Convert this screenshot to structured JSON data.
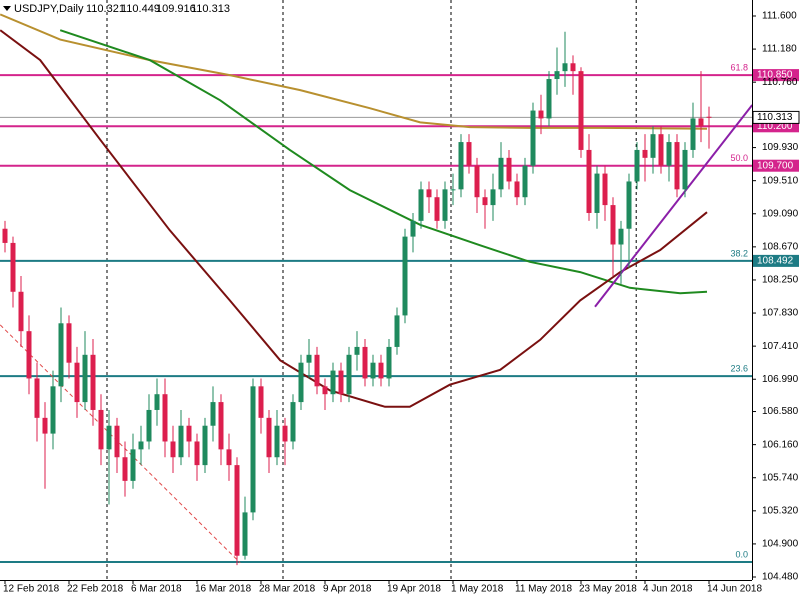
{
  "chart_data": {
    "type": "candlestick",
    "symbol": "USDJPY,Daily",
    "header_values": [
      110.321,
      110.449,
      109.916,
      110.313
    ],
    "up_color": "#1f8a5e",
    "down_color": "#dc1f4e",
    "xlim": [
      -0.625,
      93.375
    ],
    "ylim": [
      104.442,
      111.803
    ],
    "yticks": [
      {
        "value": 111.6,
        "label": "111.600"
      },
      {
        "value": 111.18,
        "label": "111.180"
      },
      {
        "value": 110.76,
        "label": "110.760"
      },
      {
        "value": 109.93,
        "label": "109.930"
      },
      {
        "value": 109.51,
        "label": "109.510"
      },
      {
        "value": 109.09,
        "label": "109.090"
      },
      {
        "value": 108.67,
        "label": "108.670"
      },
      {
        "value": 108.25,
        "label": "108.250"
      },
      {
        "value": 107.83,
        "label": "107.830"
      },
      {
        "value": 107.41,
        "label": "107.410"
      },
      {
        "value": 106.99,
        "label": "106.990"
      },
      {
        "value": 106.58,
        "label": "106.580"
      },
      {
        "value": 106.16,
        "label": "106.160"
      },
      {
        "value": 105.74,
        "label": "105.740"
      },
      {
        "value": 105.32,
        "label": "105.320"
      },
      {
        "value": 104.9,
        "label": "104.900"
      },
      {
        "value": 104.48,
        "label": "104.480"
      }
    ],
    "categories": [
      "12 Feb 2018",
      null,
      null,
      null,
      null,
      null,
      null,
      null,
      "22 Feb 2018",
      null,
      null,
      null,
      null,
      null,
      null,
      null,
      "6 Mar 2018",
      null,
      null,
      null,
      null,
      null,
      null,
      null,
      "16 Mar 2018",
      null,
      null,
      null,
      null,
      null,
      null,
      null,
      "28 Mar 2018",
      null,
      null,
      null,
      null,
      null,
      null,
      null,
      "9 Apr 2018",
      null,
      null,
      null,
      null,
      null,
      null,
      null,
      "19 Apr 2018",
      null,
      null,
      null,
      null,
      null,
      null,
      null,
      "1 May 2018",
      null,
      null,
      null,
      null,
      null,
      null,
      null,
      "11 May 2018",
      null,
      null,
      null,
      null,
      null,
      null,
      null,
      "23 May 2018",
      null,
      null,
      null,
      null,
      null,
      null,
      null,
      "4 Jun 2018",
      null,
      null,
      null,
      null,
      null,
      null,
      null,
      "14 Jun 2018"
    ],
    "series": [
      {
        "ohlc": [
          [
            108.9,
            109.0,
            108.6,
            108.72
          ],
          [
            108.72,
            108.8,
            107.9,
            108.1
          ],
          [
            108.1,
            108.3,
            107.4,
            107.6
          ],
          [
            107.6,
            107.8,
            106.8,
            107.0
          ],
          [
            107.0,
            107.2,
            106.2,
            106.5
          ],
          [
            106.5,
            106.7,
            105.6,
            106.3
          ],
          [
            106.3,
            107.1,
            106.1,
            106.9
          ],
          [
            106.9,
            107.9,
            106.7,
            107.7
          ],
          [
            107.7,
            107.8,
            107.0,
            107.2
          ],
          [
            107.2,
            107.4,
            106.5,
            106.7
          ],
          [
            106.7,
            107.6,
            106.6,
            107.3
          ],
          [
            107.3,
            107.5,
            106.4,
            106.6
          ],
          [
            106.6,
            106.8,
            105.9,
            106.1
          ],
          [
            106.1,
            106.6,
            105.4,
            106.4
          ],
          [
            106.4,
            106.5,
            105.8,
            106.0
          ],
          [
            106.0,
            106.2,
            105.5,
            105.7
          ],
          [
            105.7,
            106.3,
            105.6,
            106.1
          ],
          [
            106.1,
            106.4,
            105.9,
            106.2
          ],
          [
            106.2,
            106.8,
            106.1,
            106.6
          ],
          [
            106.6,
            107.0,
            106.4,
            106.8
          ],
          [
            106.8,
            107.0,
            106.0,
            106.2
          ],
          [
            106.2,
            106.4,
            105.8,
            106.0
          ],
          [
            106.0,
            106.6,
            105.9,
            106.4
          ],
          [
            106.4,
            106.5,
            106.0,
            106.2
          ],
          [
            106.2,
            106.3,
            105.7,
            105.9
          ],
          [
            105.9,
            106.5,
            105.8,
            106.4
          ],
          [
            106.4,
            106.9,
            106.2,
            106.7
          ],
          [
            106.7,
            106.8,
            105.9,
            106.1
          ],
          [
            106.1,
            106.3,
            105.7,
            105.9
          ],
          [
            105.9,
            106.0,
            104.63,
            104.75
          ],
          [
            104.75,
            105.5,
            104.7,
            105.3
          ],
          [
            105.3,
            107.0,
            105.2,
            106.9
          ],
          [
            106.9,
            107.0,
            106.3,
            106.5
          ],
          [
            106.5,
            106.6,
            105.8,
            106.0
          ],
          [
            106.0,
            106.6,
            105.9,
            106.4
          ],
          [
            106.4,
            106.5,
            105.9,
            106.2
          ],
          [
            106.2,
            106.8,
            106.1,
            106.7
          ],
          [
            106.7,
            107.3,
            106.6,
            107.2
          ],
          [
            107.2,
            107.5,
            107.0,
            107.3
          ],
          [
            107.3,
            107.4,
            106.8,
            106.9
          ],
          [
            106.9,
            107.0,
            106.6,
            106.8
          ],
          [
            106.8,
            107.2,
            106.7,
            107.1
          ],
          [
            107.1,
            107.2,
            106.7,
            106.8
          ],
          [
            106.8,
            107.4,
            106.7,
            107.3
          ],
          [
            107.3,
            107.6,
            107.1,
            107.4
          ],
          [
            107.4,
            107.5,
            106.9,
            107.0
          ],
          [
            107.0,
            107.3,
            106.9,
            107.2
          ],
          [
            107.2,
            107.3,
            106.9,
            107.0
          ],
          [
            107.0,
            107.5,
            106.9,
            107.4
          ],
          [
            107.4,
            107.9,
            107.3,
            107.8
          ],
          [
            107.8,
            108.9,
            107.7,
            108.8
          ],
          [
            108.8,
            109.1,
            108.6,
            109.0
          ],
          [
            109.0,
            109.5,
            108.9,
            109.4
          ],
          [
            109.4,
            109.5,
            109.1,
            109.3
          ],
          [
            109.3,
            109.4,
            108.9,
            109.0
          ],
          [
            109.0,
            109.5,
            108.9,
            109.4
          ],
          [
            109.4,
            109.6,
            109.2,
            109.4
          ],
          [
            109.4,
            110.1,
            109.3,
            110.0
          ],
          [
            110.0,
            110.1,
            109.6,
            109.7
          ],
          [
            109.7,
            109.8,
            109.1,
            109.3
          ],
          [
            109.3,
            109.4,
            108.9,
            109.2
          ],
          [
            109.2,
            109.6,
            109.0,
            109.4
          ],
          [
            109.4,
            110.0,
            109.3,
            109.8
          ],
          [
            109.8,
            109.9,
            109.4,
            109.5
          ],
          [
            109.5,
            109.6,
            109.2,
            109.3
          ],
          [
            109.3,
            109.8,
            109.2,
            109.7
          ],
          [
            109.7,
            110.5,
            109.6,
            110.4
          ],
          [
            110.4,
            110.6,
            110.1,
            110.3
          ],
          [
            110.3,
            110.9,
            110.2,
            110.8
          ],
          [
            110.8,
            111.2,
            110.6,
            110.9
          ],
          [
            110.9,
            111.4,
            110.7,
            111.0
          ],
          [
            111.0,
            111.1,
            110.6,
            110.9
          ],
          [
            110.9,
            110.95,
            109.8,
            109.9
          ],
          [
            109.9,
            110.1,
            109.0,
            109.1
          ],
          [
            109.1,
            109.7,
            108.9,
            109.6
          ],
          [
            109.6,
            109.7,
            109.0,
            109.2
          ],
          [
            109.2,
            109.3,
            108.3,
            108.7
          ],
          [
            108.7,
            109.0,
            108.2,
            108.9
          ],
          [
            108.9,
            109.6,
            108.4,
            109.5
          ],
          [
            109.5,
            110.0,
            109.4,
            109.9
          ],
          [
            109.9,
            110.1,
            109.5,
            109.8
          ],
          [
            109.8,
            110.2,
            109.6,
            110.1
          ],
          [
            110.1,
            110.2,
            109.6,
            109.7
          ],
          [
            109.7,
            110.1,
            109.5,
            110.0
          ],
          [
            110.0,
            110.1,
            109.3,
            109.4
          ],
          [
            109.4,
            110.0,
            109.3,
            109.9
          ],
          [
            109.9,
            110.5,
            109.8,
            110.3
          ],
          [
            110.3,
            110.9,
            110.0,
            110.2
          ],
          [
            110.321,
            110.449,
            109.916,
            110.313
          ]
        ]
      }
    ],
    "lines": [
      {
        "color": "#b8902f",
        "x": [
          -0.6,
          6.9,
          18.1,
          28.1,
          36.9,
          45.6,
          51.9,
          58.1,
          65.6,
          74.4,
          87.75
        ],
        "values": [
          111.62,
          111.3,
          111.04,
          110.85,
          110.66,
          110.43,
          110.25,
          110.19,
          110.18,
          110.18,
          110.17
        ]
      },
      {
        "color": "#1f8a1f",
        "x": [
          6.9,
          18.1,
          26.9,
          35.6,
          43.1,
          51.9,
          59.4,
          65.6,
          71.9,
          78.1,
          84.4,
          87.75
        ],
        "values": [
          111.42,
          111.04,
          110.53,
          109.9,
          109.39,
          108.95,
          108.69,
          108.48,
          108.35,
          108.15,
          108.08,
          108.1
        ]
      },
      {
        "color": "#7a1010",
        "x": [
          -0.6,
          4.4,
          11.9,
          20.6,
          28.1,
          34.4,
          40.6,
          47.5,
          50.6,
          55.6,
          61.9,
          66.9,
          71.9,
          76.9,
          81.9,
          87.75
        ],
        "values": [
          111.42,
          111.04,
          110.03,
          108.88,
          107.99,
          107.23,
          106.85,
          106.64,
          106.64,
          106.92,
          107.11,
          107.49,
          107.99,
          108.35,
          108.63,
          109.11
        ]
      }
    ],
    "trendlines": [
      {
        "color": "#e04a4a",
        "dashed": true,
        "x": [
          -0.6,
          29.4
        ],
        "values": [
          107.68,
          104.66
        ]
      },
      {
        "color": "#8b1fa8",
        "dashed": false,
        "x": [
          73.75,
          93.4
        ],
        "values": [
          107.91,
          110.47
        ]
      }
    ],
    "separators": [
      12.75,
      34.75,
      55.75,
      78.9
    ],
    "levels": [
      {
        "color": "#d4248c",
        "fib": {
          "value": 61.8,
          "label": "61.8"
        },
        "price": {
          "value": 110.85,
          "label": "110.850"
        }
      },
      {
        "color": "#d4248c",
        "price": {
          "value": 110.2,
          "label": "110.200"
        }
      },
      {
        "color": "#d4248c",
        "fib": {
          "value": 50,
          "label": "50.0"
        },
        "price": {
          "value": 109.7,
          "label": "109.700"
        }
      },
      {
        "color": "#1d7b84",
        "fib": {
          "value": 38.2,
          "label": "38.2"
        },
        "price": {
          "value": 108.492,
          "label": "108.492"
        }
      },
      {
        "color": "#1d7b84",
        "fib": {
          "value": 23.6,
          "label": "23.6"
        },
        "price": {
          "value": 107.03
        }
      },
      {
        "color": "#1d7b84",
        "fib": {
          "value": 0,
          "label": "0.0"
        },
        "price": {
          "value": 104.67
        }
      }
    ],
    "last_price": 110.313
  }
}
